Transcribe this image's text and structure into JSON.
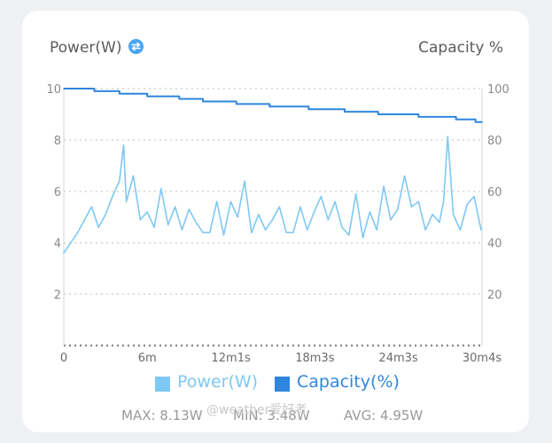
{
  "header": {
    "left_title": "Power(W)",
    "right_title": "Capacity %",
    "toggle_icon": "swap-icon"
  },
  "chart_data": {
    "type": "line",
    "x_tick_labels": [
      "0",
      "6m",
      "12m1s",
      "18m3s",
      "24m3s",
      "30m4s"
    ],
    "x_tick_minutes": [
      0,
      6,
      12.0167,
      18.05,
      24.05,
      30.0667
    ],
    "y_left": {
      "label": "Power(W)",
      "ticks": [
        2,
        4,
        6,
        8,
        10
      ],
      "range": [
        0,
        10
      ]
    },
    "y_right": {
      "label": "Capacity %",
      "ticks": [
        20,
        40,
        60,
        80,
        100
      ],
      "range": [
        0,
        100
      ]
    },
    "grid": true,
    "series": [
      {
        "name": "Power(W)",
        "axis": "left",
        "color": "#7fc8f3",
        "x": [
          0,
          1,
          2,
          2.5,
          3,
          3.5,
          4,
          4.3,
          4.5,
          5,
          5.5,
          6,
          6.5,
          7,
          7.5,
          8,
          8.5,
          9,
          9.5,
          10,
          10.5,
          11,
          11.5,
          12,
          12.5,
          13,
          13.5,
          14,
          14.5,
          15,
          15.5,
          16,
          16.5,
          17,
          17.5,
          18,
          18.5,
          19,
          19.5,
          20,
          20.5,
          21,
          21.5,
          22,
          22.5,
          23,
          23.5,
          24,
          24.5,
          25,
          25.5,
          26,
          26.5,
          27,
          27.3,
          27.6,
          28,
          28.5,
          29,
          29.5,
          30
        ],
        "values": [
          3.6,
          4.4,
          5.4,
          4.6,
          5.1,
          5.8,
          6.4,
          7.8,
          5.6,
          6.6,
          4.9,
          5.2,
          4.6,
          6.1,
          4.7,
          5.4,
          4.5,
          5.3,
          4.8,
          4.4,
          4.4,
          5.6,
          4.3,
          5.6,
          5.0,
          6.4,
          4.4,
          5.1,
          4.5,
          4.9,
          5.4,
          4.4,
          4.4,
          5.4,
          4.5,
          5.2,
          5.8,
          4.9,
          5.6,
          4.6,
          4.3,
          5.9,
          4.2,
          5.2,
          4.5,
          6.2,
          4.9,
          5.3,
          6.6,
          5.4,
          5.6,
          4.5,
          5.1,
          4.8,
          5.6,
          8.13,
          5.1,
          4.5,
          5.5,
          5.8,
          4.5
        ]
      },
      {
        "name": "Capacity(%)",
        "axis": "right",
        "color": "#2f86de",
        "step": true,
        "x": [
          0,
          2.2,
          4,
          6,
          8.3,
          10,
          12.4,
          14.8,
          17.6,
          20.2,
          22.6,
          25.5,
          28.2,
          29.6,
          30.0667
        ],
        "values": [
          100,
          99,
          98,
          97,
          96,
          95,
          94,
          93,
          92,
          91,
          90,
          89,
          88,
          87,
          87
        ]
      }
    ]
  },
  "legend": [
    {
      "label": "Power(W)",
      "color": "#7fc8f3"
    },
    {
      "label": "Capacity(%)",
      "color": "#2f86de"
    }
  ],
  "stats": {
    "max": "MAX: 8.13W",
    "min": "MIN: 3.48W",
    "avg": "AVG: 4.95W"
  },
  "watermark": "@weather爱好者"
}
